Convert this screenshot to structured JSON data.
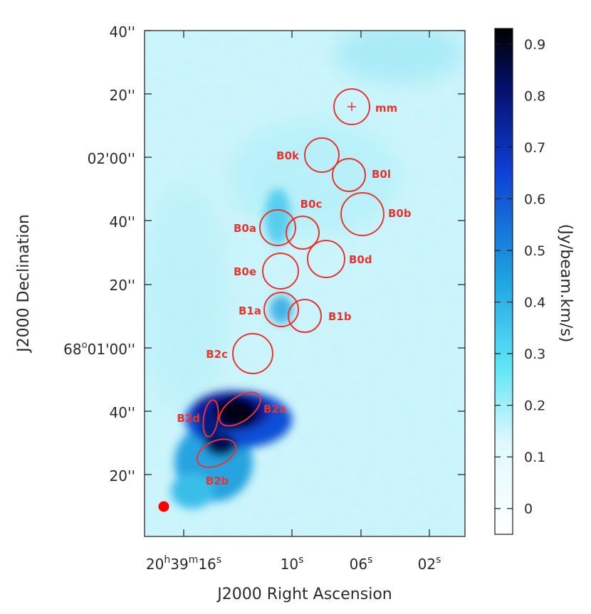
{
  "chart_data": {
    "type": "heatmap",
    "title": "",
    "xlabel": "J2000 Right Ascension",
    "ylabel": "J2000 Declination",
    "x_ticks": [
      {
        "h": "20",
        "m": "39",
        "s": "16"
      },
      {
        "s": "10"
      },
      {
        "s": "06"
      },
      {
        "s": "02"
      }
    ],
    "y_ticks": [
      {
        "text": "40''"
      },
      {
        "text": "20''"
      },
      {
        "text": "02'00''"
      },
      {
        "text": "40''"
      },
      {
        "text": "20''"
      },
      {
        "deg": "68",
        "rest": "01'00''"
      },
      {
        "text": "40''"
      },
      {
        "text": "20''"
      }
    ],
    "colorbar": {
      "label": "(Jy/beam.km/s)",
      "ticks": [
        "0",
        "0.1",
        "0.2",
        "0.3",
        "0.4",
        "0.5",
        "0.6",
        "0.7",
        "0.8",
        "0.9"
      ],
      "range": [
        -0.05,
        0.93
      ],
      "colormap": [
        "#ffffff",
        "#5fe6f5",
        "#1fa5e0",
        "#0d3fd3",
        "#000000"
      ]
    },
    "regions": [
      {
        "name": "mm",
        "shape": "circle",
        "has_cross": true
      },
      {
        "name": "B0k",
        "shape": "circle"
      },
      {
        "name": "B0l",
        "shape": "circle"
      },
      {
        "name": "B0b",
        "shape": "circle"
      },
      {
        "name": "B0c",
        "shape": "circle"
      },
      {
        "name": "B0a",
        "shape": "circle"
      },
      {
        "name": "B0d",
        "shape": "circle"
      },
      {
        "name": "B0e",
        "shape": "circle"
      },
      {
        "name": "B1a",
        "shape": "circle"
      },
      {
        "name": "B1b",
        "shape": "circle"
      },
      {
        "name": "B2c",
        "shape": "circle"
      },
      {
        "name": "B2a",
        "shape": "ellipse"
      },
      {
        "name": "B2d",
        "shape": "ellipse"
      },
      {
        "name": "B2b",
        "shape": "ellipse"
      }
    ],
    "beam": {
      "shape": "filled-circle",
      "color": "#ff0000"
    },
    "region_color": "#e8342e"
  }
}
